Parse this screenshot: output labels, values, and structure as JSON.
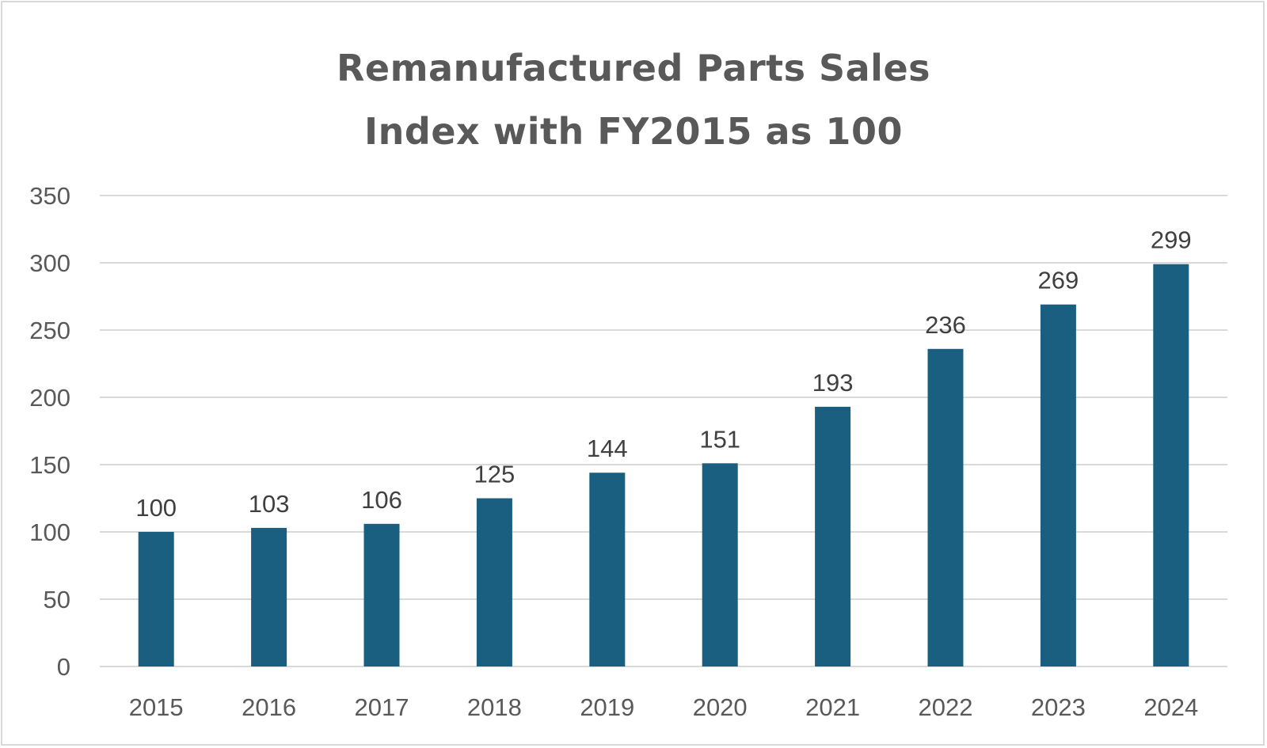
{
  "chart_data": {
    "type": "bar",
    "title": [
      "Remanufactured Parts Sales",
      "Index with FY2015 as 100"
    ],
    "xlabel": "",
    "ylabel": "",
    "categories": [
      "2015",
      "2016",
      "2017",
      "2018",
      "2019",
      "2020",
      "2021",
      "2022",
      "2023",
      "2024"
    ],
    "values": [
      100,
      103,
      106,
      125,
      144,
      151,
      193,
      236,
      269,
      299
    ],
    "data_labels": [
      "100",
      "103",
      "106",
      "125",
      "144",
      "151",
      "193",
      "236",
      "269",
      "299"
    ],
    "ylim": [
      0,
      350
    ],
    "yticks": [
      0,
      50,
      100,
      150,
      200,
      250,
      300,
      350
    ],
    "ytick_labels": [
      "0",
      "50",
      "100",
      "150",
      "200",
      "250",
      "300",
      "350"
    ],
    "grid": true,
    "legend": "none",
    "colors": {
      "bar": "#1a5f7f",
      "grid": "#d9d9d9",
      "title": "#595959",
      "tick_text": "#595959",
      "data_label_text": "#404040",
      "border": "#d9d9d9"
    }
  }
}
